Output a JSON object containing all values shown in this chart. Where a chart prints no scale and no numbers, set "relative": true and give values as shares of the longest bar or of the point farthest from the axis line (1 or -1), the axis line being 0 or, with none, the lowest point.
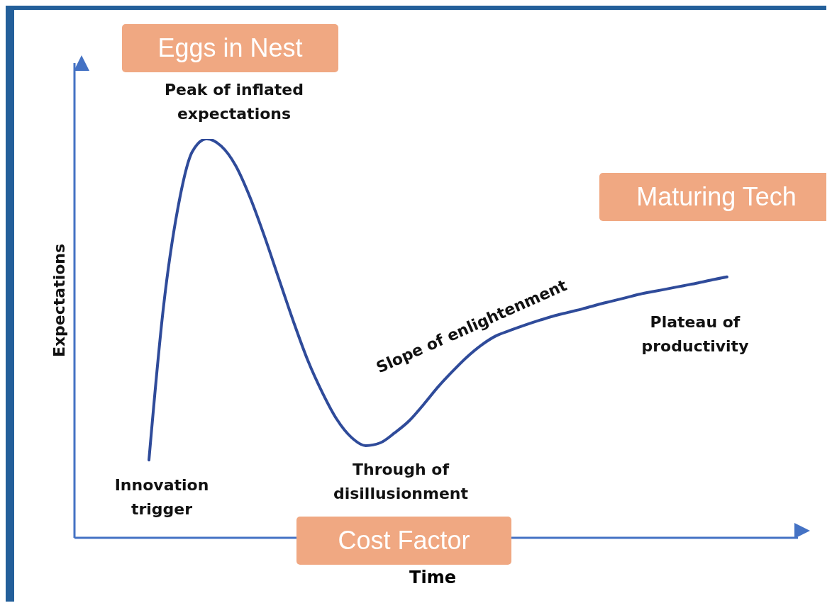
{
  "chart_data": {
    "type": "line",
    "relative": true,
    "xlabel": "Time",
    "ylabel": "Expectations",
    "categories": [
      null,
      null,
      null,
      null,
      null,
      null,
      null,
      null,
      null,
      null,
      null,
      null,
      null,
      null,
      null,
      null,
      null,
      null,
      null,
      null,
      null,
      null,
      null,
      null,
      null,
      null,
      null,
      null,
      null,
      null,
      null,
      null,
      null,
      null,
      null,
      null,
      null,
      null,
      null,
      null,
      null
    ],
    "series": [
      {
        "color": "#2f4b9a",
        "values": [
          0.195,
          0.577,
          0.826,
          0.968,
          1,
          0.982,
          0.933,
          0.853,
          0.755,
          0.648,
          0.542,
          0.444,
          0.364,
          0.297,
          0.252,
          0.231,
          0.238,
          0.263,
          0.293,
          0.334,
          0.378,
          0.417,
          0.453,
          0.483,
          0.506,
          0.52,
          0.533,
          0.545,
          0.556,
          0.565,
          0.574,
          0.584,
          0.593,
          0.602,
          0.611,
          0.618,
          0.625,
          0.632,
          0.639,
          0.647,
          0.654
        ]
      }
    ],
    "marker": "none",
    "line_style": "solid",
    "grid": false,
    "legend": false,
    "annotations": [
      "Eggs in Nest",
      "Peak of inflated expectations",
      "Maturing Tech",
      "Slope of enlightenment",
      "Plateau of productivity",
      "Innovation trigger",
      "Through of disillusionment",
      "Cost Factor"
    ]
  }
}
